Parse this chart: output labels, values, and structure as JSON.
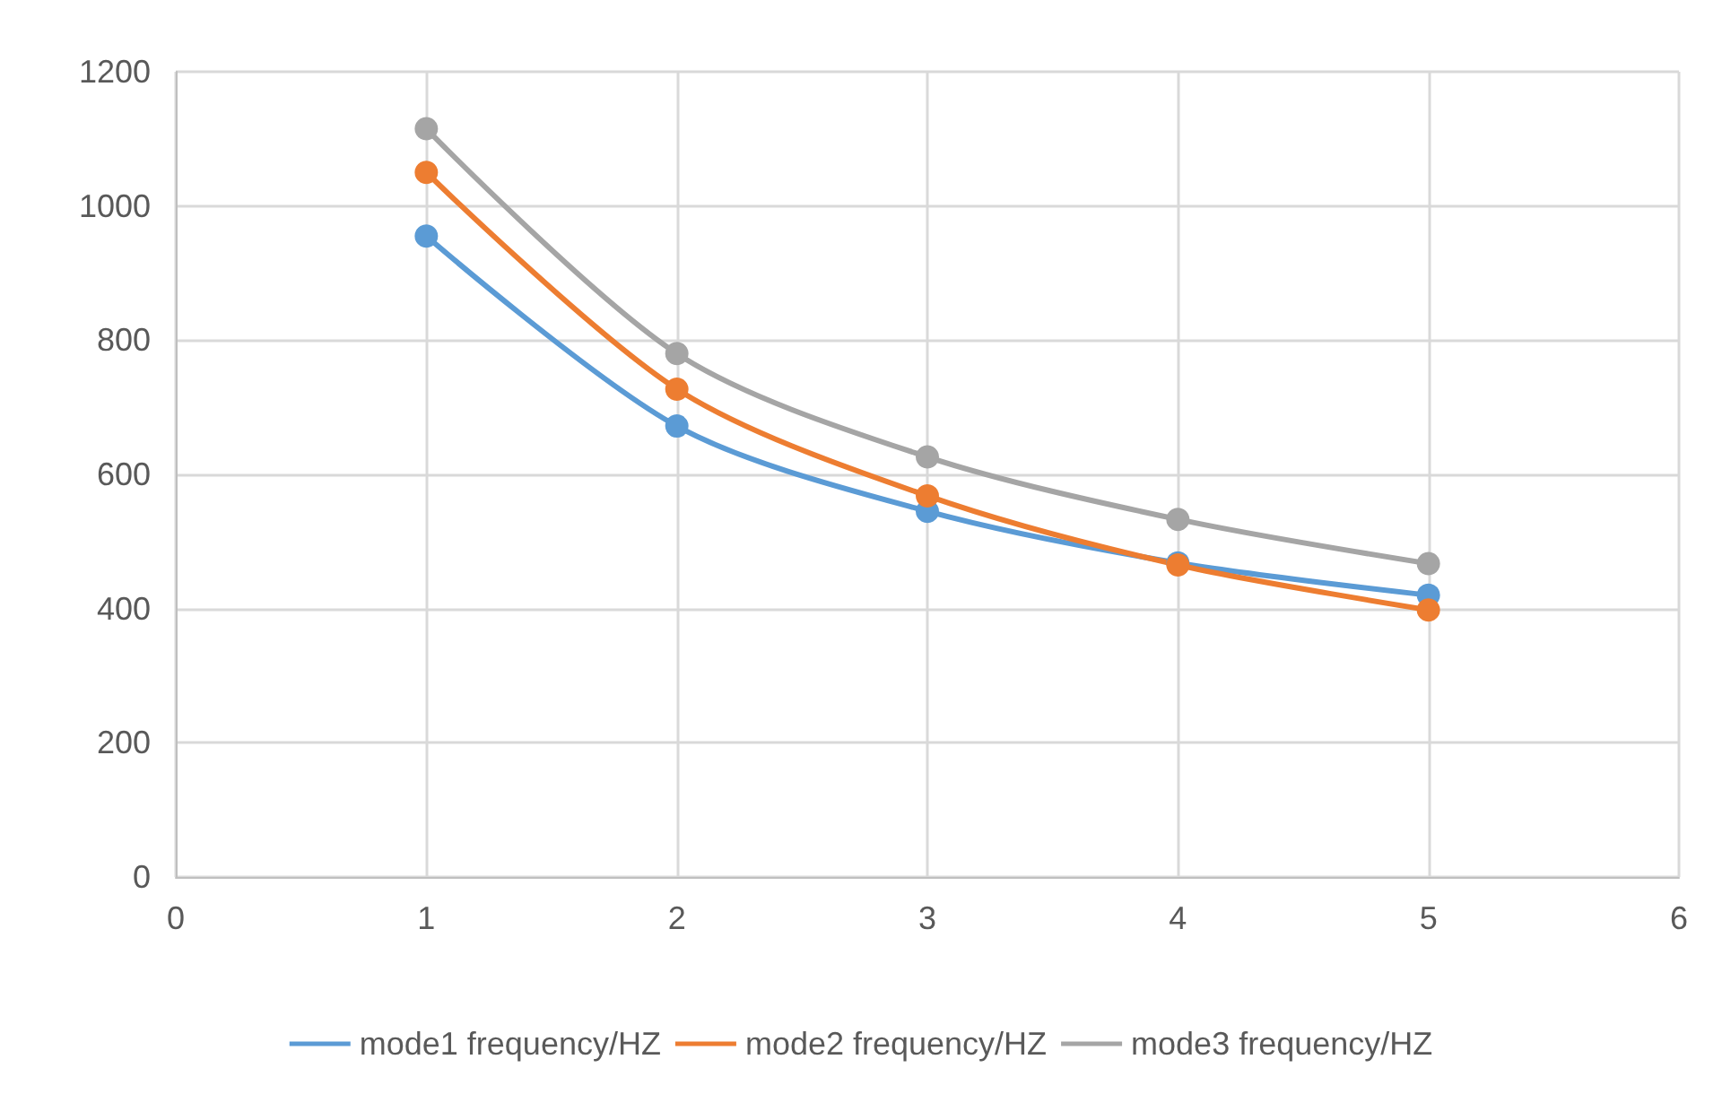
{
  "chart_data": {
    "type": "line",
    "x": [
      1,
      2,
      3,
      4,
      5
    ],
    "series": [
      {
        "name": "mode1 frequency/HZ",
        "color": "#5b9bd5",
        "values": [
          955,
          672,
          545,
          468,
          420
        ]
      },
      {
        "name": "mode2 frequency/HZ",
        "color": "#ed7d31",
        "values": [
          1050,
          727,
          568,
          465,
          398
        ]
      },
      {
        "name": "mode3 frequency/HZ",
        "color": "#a5a5a5",
        "values": [
          1115,
          780,
          626,
          533,
          467
        ]
      }
    ],
    "xlim": [
      0,
      6
    ],
    "xticks": [
      0,
      1,
      2,
      3,
      4,
      5,
      6
    ],
    "ylim": [
      0,
      1200
    ],
    "yticks": [
      0,
      200,
      400,
      600,
      800,
      1000,
      1200
    ],
    "grid": true,
    "legend": "bottom",
    "marker": "circle",
    "line_style": "solid"
  }
}
